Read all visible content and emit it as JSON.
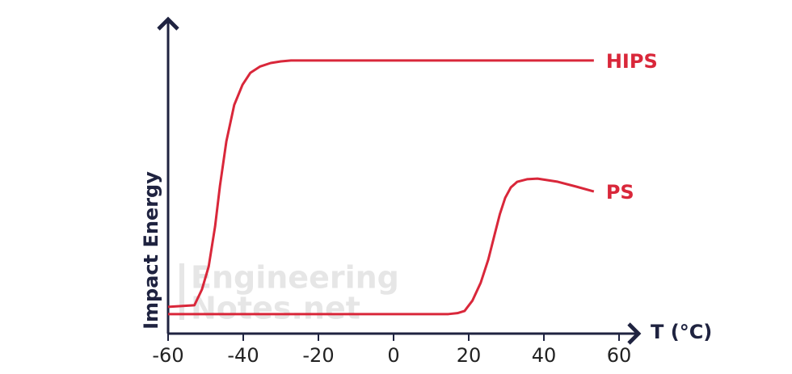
{
  "chart_data": {
    "type": "line",
    "x_label": "T (°C)",
    "y_label": "Impact Energy",
    "watermark": [
      "Engineering",
      "Notes.net"
    ],
    "xlim": [
      -60,
      60
    ],
    "xticks": [
      -60,
      -40,
      -20,
      0,
      20,
      40,
      60
    ],
    "ylim": [
      0,
      100
    ],
    "series": [
      {
        "name": "HIPS",
        "color": "#d9273a",
        "x": [
          -60,
          -53,
          -51,
          -49.2,
          -47.5,
          -46.2,
          -44.5,
          -42.4,
          -40.2,
          -38.1,
          -35.5,
          -32.7,
          -30,
          -27.3,
          53.3
        ],
        "values": [
          8.5,
          9,
          14,
          21.3,
          34,
          46.9,
          61,
          72.6,
          79,
          82.8,
          84.8,
          85.9,
          86.4,
          86.7,
          86.7
        ]
      },
      {
        "name": "PS",
        "color": "#d9273a",
        "x": [
          -60,
          14.6,
          17,
          18.9,
          21,
          23.2,
          25.2,
          26.9,
          28.3,
          29.7,
          31.2,
          32.9,
          35.5,
          38.3,
          43.7,
          48.5,
          53.3
        ],
        "values": [
          6.2,
          6.2,
          6.5,
          7.2,
          10.5,
          16.2,
          23.5,
          31.5,
          38,
          43.1,
          46.4,
          48.2,
          49,
          49.2,
          48.2,
          46.7,
          45.1
        ]
      }
    ]
  }
}
